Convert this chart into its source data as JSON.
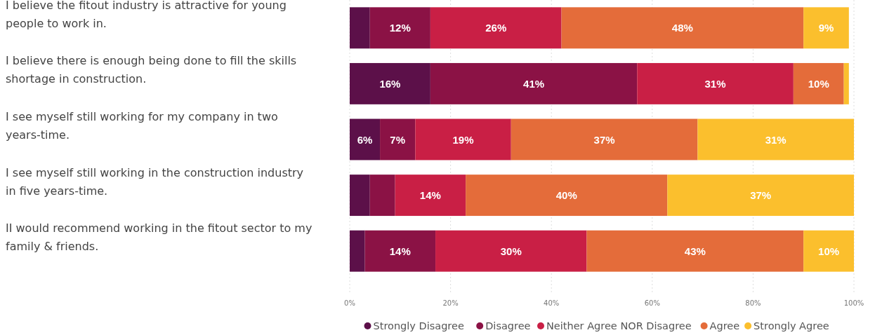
{
  "chart_data": {
    "type": "bar",
    "orientation": "horizontal",
    "stacked": true,
    "categories": [
      "I believe the fitout industry is attractive for young people to work in.",
      "I believe there is enough being done to fill the skills shortage in construction.",
      "I see myself still working for my company in two years-time.",
      "I see myself still working in the construction industry in five years-time.",
      "II would recommend working in the fitout sector to my family & friends."
    ],
    "series": [
      {
        "name": "Strongly Disagree",
        "color": "#5c1049",
        "values": [
          4,
          16,
          6,
          4,
          3
        ],
        "value_labels": [
          null,
          "16%",
          "6%",
          null,
          null
        ]
      },
      {
        "name": "Disagree",
        "color": "#8b1245",
        "values": [
          12,
          41,
          7,
          5,
          14
        ],
        "value_labels": [
          "12%",
          "41%",
          "7%",
          null,
          "14%"
        ]
      },
      {
        "name": "Neither Agree NOR Disagree",
        "color": "#c91f45",
        "values": [
          26,
          31,
          19,
          14,
          30
        ],
        "value_labels": [
          "26%",
          "31%",
          "19%",
          "14%",
          "30%"
        ]
      },
      {
        "name": "Agree",
        "color": "#e46c3a",
        "values": [
          48,
          10,
          37,
          40,
          43
        ],
        "value_labels": [
          "48%",
          "10%",
          "37%",
          "40%",
          "43%"
        ]
      },
      {
        "name": "Strongly Agree",
        "color": "#fbbf2d",
        "values": [
          9,
          1,
          31,
          37,
          10
        ],
        "value_labels": [
          "9%",
          null,
          "31%",
          "37%",
          "10%"
        ]
      }
    ],
    "xlim": [
      0,
      100
    ],
    "xticks": [
      {
        "value": 0,
        "label": "0%"
      },
      {
        "value": 20,
        "label": "20%"
      },
      {
        "value": 40,
        "label": "40%"
      },
      {
        "value": 60,
        "label": "60%"
      },
      {
        "value": 80,
        "label": "80%"
      },
      {
        "value": 100,
        "label": "100%"
      }
    ],
    "grid": "x",
    "legend": "bottom",
    "marker": "circle"
  }
}
